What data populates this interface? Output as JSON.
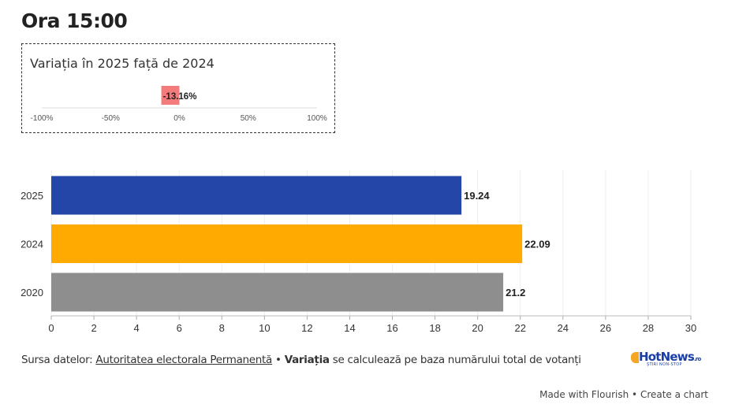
{
  "header": {
    "title": "Ora 15:00"
  },
  "variation": {
    "title": "Variația în 2025 față de 2024",
    "value": -13.16,
    "value_label": "-13.16%",
    "bar_color": "#f47b7b",
    "axis_ticks": [
      -100,
      -50,
      0,
      50,
      100
    ],
    "axis_tick_labels": [
      "-100%",
      "-50%",
      "0%",
      "50%",
      "100%"
    ]
  },
  "chart_data": {
    "type": "bar",
    "orientation": "horizontal",
    "categories": [
      "2025",
      "2024",
      "2020"
    ],
    "values": [
      19.24,
      22.09,
      21.2
    ],
    "value_labels": [
      "19.24",
      "22.09",
      "21.2"
    ],
    "colors": [
      "#2346a8",
      "#ffaa00",
      "#8e8e8e"
    ],
    "xlim": [
      0,
      30
    ],
    "x_ticks": [
      0,
      2,
      4,
      6,
      8,
      10,
      12,
      14,
      16,
      18,
      20,
      22,
      24,
      26,
      28,
      30
    ],
    "grid": true
  },
  "footer": {
    "source_prefix": "Sursa datelor:",
    "source_link": "Autoritatea electorala Permanentă",
    "separator": "•",
    "note_bold": "Variația",
    "note_rest": "se calculează pe baza numărului total de votanți",
    "logo_text": "HotNews",
    "logo_tld": ".ro",
    "logo_sub": "ȘTIRI NON-STOP",
    "made_with": "Made with Flourish",
    "made_sep": "•",
    "create": "Create a chart"
  }
}
